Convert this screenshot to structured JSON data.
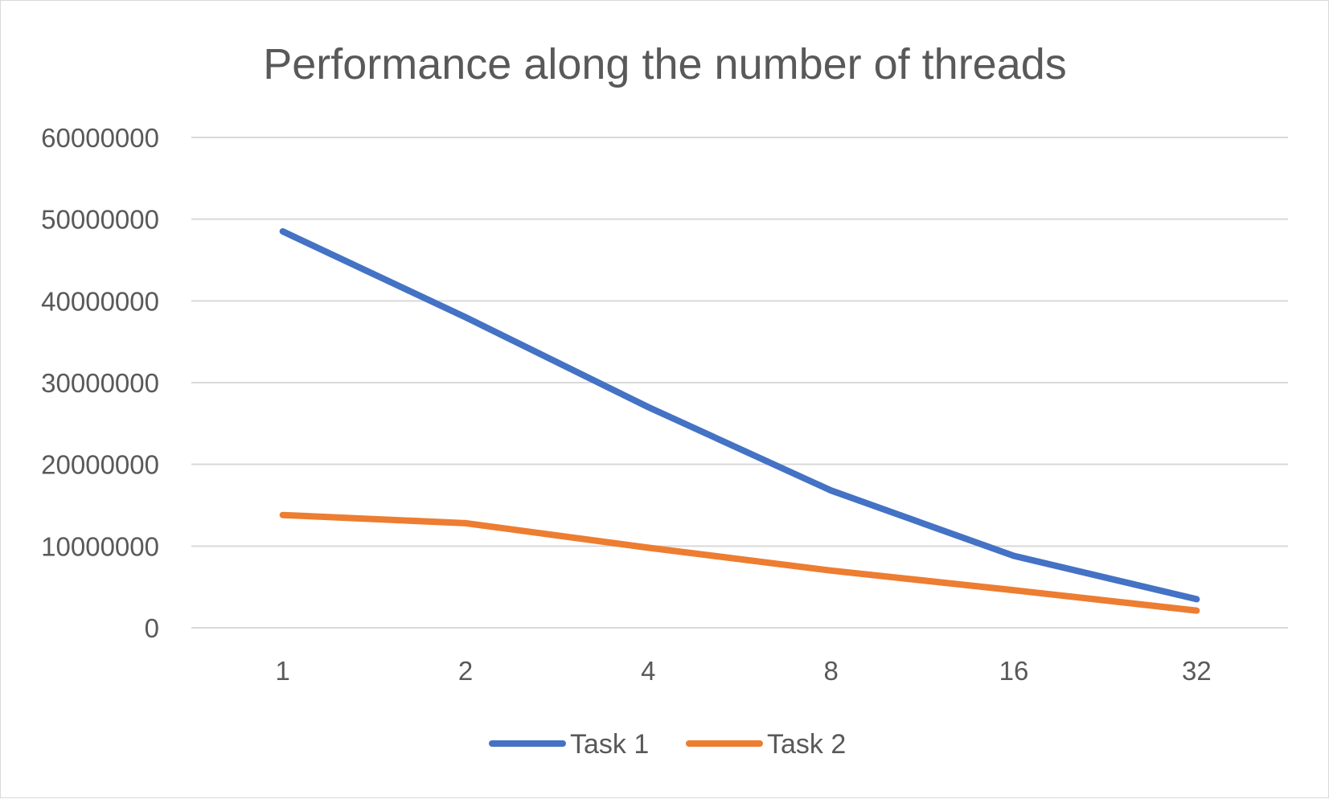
{
  "chart_data": {
    "type": "line",
    "title": "Performance along the number of threads",
    "categories": [
      "1",
      "2",
      "4",
      "8",
      "16",
      "32"
    ],
    "series": [
      {
        "name": "Task 1",
        "color": "#4472c4",
        "values": [
          48500000,
          38000000,
          27000000,
          16800000,
          8800000,
          3500000
        ]
      },
      {
        "name": "Task 2",
        "color": "#ed7d31",
        "values": [
          13800000,
          12800000,
          9800000,
          7000000,
          4600000,
          2100000
        ]
      }
    ],
    "y_ticks": [
      "0",
      "10000000",
      "20000000",
      "30000000",
      "40000000",
      "50000000",
      "60000000"
    ],
    "ylim": [
      0,
      60000000
    ],
    "grid": true,
    "legend_position": "bottom",
    "xlabel": "",
    "ylabel": ""
  }
}
